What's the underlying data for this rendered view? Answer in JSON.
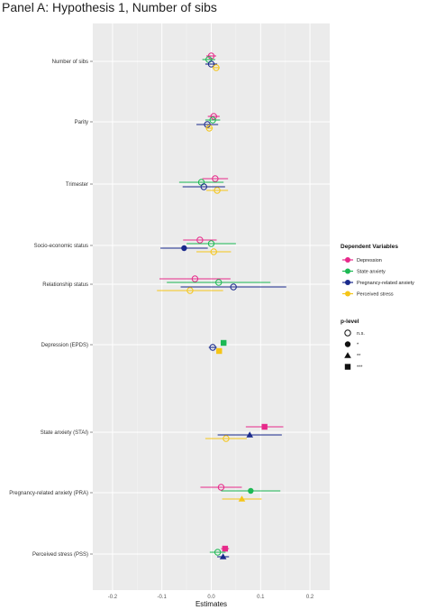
{
  "chart_data": {
    "type": "scatter",
    "title": "Panel A: Hypothesis 1, Number of sibs",
    "xlabel": "Estimates",
    "ylabel": "",
    "xlim": [
      -0.24,
      0.24
    ],
    "xticks": [
      "-0.2",
      "-0.1",
      "0.0",
      "0.1",
      "0.2"
    ],
    "xtick_values": [
      -0.2,
      -0.1,
      0.0,
      0.1,
      0.2
    ],
    "grid": true,
    "legend_position": "right",
    "categories": [
      "Number of sibs",
      "Parity",
      "Trimester",
      "Socio-economic status",
      "Relationship status",
      "Depression (EPDS)",
      "State anxiety (STAI)",
      "Pregnancy-related anxiety (PRA)",
      "Perceived stress (PSS)"
    ],
    "series": [
      {
        "name": "Depression",
        "color": "#e7298a",
        "points": [
          {
            "est": 0.0,
            "lo": -0.01,
            "hi": 0.01,
            "p": "n.s."
          },
          {
            "est": 0.005,
            "lo": -0.007,
            "hi": 0.017,
            "p": "n.s."
          },
          {
            "est": 0.008,
            "lo": -0.018,
            "hi": 0.034,
            "p": "n.s."
          },
          {
            "est": -0.023,
            "lo": -0.057,
            "hi": 0.011,
            "p": "n.s."
          },
          {
            "est": -0.033,
            "lo": -0.105,
            "hi": 0.039,
            "p": "n.s."
          },
          null,
          {
            "est": 0.108,
            "lo": 0.07,
            "hi": 0.146,
            "p": "***"
          },
          {
            "est": 0.02,
            "lo": -0.022,
            "hi": 0.062,
            "p": "n.s."
          },
          {
            "est": 0.028,
            "lo": 0.02,
            "hi": 0.036,
            "p": "***"
          }
        ]
      },
      {
        "name": "State anxiety",
        "color": "#1db954",
        "points": [
          {
            "est": -0.005,
            "lo": -0.018,
            "hi": 0.008,
            "p": "n.s."
          },
          {
            "est": 0.003,
            "lo": -0.012,
            "hi": 0.018,
            "p": "n.s."
          },
          {
            "est": -0.02,
            "lo": -0.065,
            "hi": 0.025,
            "p": "n.s."
          },
          {
            "est": 0.0,
            "lo": -0.05,
            "hi": 0.05,
            "p": "n.s."
          },
          {
            "est": 0.015,
            "lo": -0.09,
            "hi": 0.12,
            "p": "n.s."
          },
          {
            "est": 0.025,
            "lo": 0.019,
            "hi": 0.031,
            "p": "***"
          },
          null,
          {
            "est": 0.08,
            "lo": 0.02,
            "hi": 0.14,
            "p": "*"
          },
          {
            "est": 0.013,
            "lo": -0.003,
            "hi": 0.029,
            "p": "n.s."
          }
        ]
      },
      {
        "name": "Pregnancy-related anxiety",
        "color": "#1a2a8c",
        "points": [
          {
            "est": 0.0,
            "lo": -0.012,
            "hi": 0.012,
            "p": "n.s."
          },
          {
            "est": -0.008,
            "lo": -0.03,
            "hi": 0.014,
            "p": "n.s."
          },
          {
            "est": -0.015,
            "lo": -0.058,
            "hi": 0.028,
            "p": "n.s."
          },
          {
            "est": -0.055,
            "lo": -0.103,
            "hi": -0.007,
            "p": "*"
          },
          {
            "est": 0.045,
            "lo": -0.062,
            "hi": 0.152,
            "p": "n.s."
          },
          {
            "est": 0.003,
            "lo": -0.005,
            "hi": 0.011,
            "p": "n.s."
          },
          {
            "est": 0.078,
            "lo": 0.013,
            "hi": 0.143,
            "p": "**"
          },
          null,
          {
            "est": 0.024,
            "lo": 0.012,
            "hi": 0.036,
            "p": "**"
          }
        ]
      },
      {
        "name": "Perceived stress",
        "color": "#f5c518",
        "points": [
          {
            "est": 0.01,
            "lo": 0.003,
            "hi": 0.017,
            "p": "n.s."
          },
          {
            "est": -0.004,
            "lo": -0.011,
            "hi": 0.003,
            "p": "n.s."
          },
          {
            "est": 0.012,
            "lo": -0.01,
            "hi": 0.034,
            "p": "n.s."
          },
          {
            "est": 0.005,
            "lo": -0.03,
            "hi": 0.04,
            "p": "n.s."
          },
          {
            "est": -0.043,
            "lo": -0.11,
            "hi": 0.024,
            "p": "n.s."
          },
          {
            "est": 0.016,
            "lo": 0.01,
            "hi": 0.022,
            "p": "***"
          },
          {
            "est": 0.03,
            "lo": -0.012,
            "hi": 0.072,
            "p": "n.s."
          },
          {
            "est": 0.062,
            "lo": 0.022,
            "hi": 0.102,
            "p": "**"
          },
          null
        ]
      }
    ],
    "legend": {
      "title": "Dependent Variables",
      "entries": [
        "Depression",
        "State anxiety",
        "Pregnancy-related anxiety",
        "Perceived stress"
      ]
    },
    "shape_legend": {
      "title": "p-level",
      "entries": [
        "n.s.",
        "*",
        "**",
        "***"
      ]
    }
  }
}
